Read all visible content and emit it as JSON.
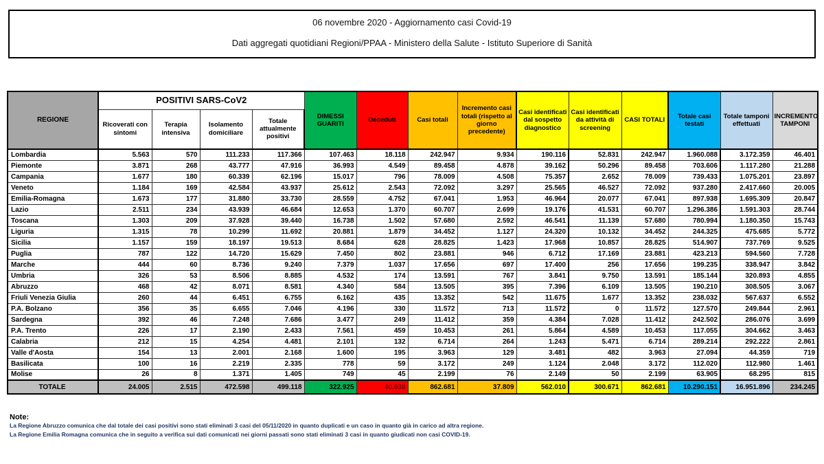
{
  "title": {
    "line1": "06 novembre 2020 - Aggiornamento casi Covid-19",
    "line2": "Dati aggregati quotidiani Regioni/PPAA - Ministero della Salute - Istituto Superiore di Sanità"
  },
  "colors": {
    "green": "#00b050",
    "red": "#ff0000",
    "orange": "#ffc000",
    "yellow": "#ffff00",
    "cyan": "#00b0f0",
    "light_blue": "#bdd7ee",
    "gray_header": "#a6a6a6",
    "gray_total": "#bfbfbf",
    "gray_light": "#d9d9d9",
    "note_text": "#1f3864"
  },
  "table": {
    "group_header": "POSITIVI SARS-CoV2",
    "headers": {
      "regione": "REGIONE",
      "sub": [
        "Ricoverati con sintomi",
        "Terapia intensiva",
        "Isolamento domiciliare",
        "Totale attualmente positivi"
      ],
      "singles": [
        "DIMESSI GUARITI",
        "Deceduti",
        "Casi totali",
        "Incremento casi totali (rispetto al giorno precedente)",
        "Casi identificati dal sospetto diagnostico",
        "Casi identificati da attività di screening",
        "CASI TOTALI",
        "Totale casi testati",
        "Totale tamponi effettuati",
        "INCREMENTO TAMPONI"
      ]
    },
    "column_keys": [
      "ricoverati-con-sintomi",
      "terapia-intensiva",
      "isolamento-domiciliare",
      "totale-attualmente-positivi",
      "dimessi-guariti",
      "deceduti",
      "casi-totali",
      "incremento-casi-totali",
      "casi-sospetto-diagnostico",
      "casi-screening",
      "casi-totali-2",
      "totale-casi-testati",
      "totale-tamponi-effettuati",
      "incremento-tamponi"
    ],
    "rows": [
      {
        "regione": "Lombardia",
        "values": [
          "5.563",
          "570",
          "111.233",
          "117.366",
          "107.463",
          "18.118",
          "242.947",
          "9.934",
          "190.116",
          "52.831",
          "242.947",
          "1.960.088",
          "3.172.359",
          "46.401"
        ]
      },
      {
        "regione": "Piemonte",
        "values": [
          "3.871",
          "268",
          "43.777",
          "47.916",
          "36.993",
          "4.549",
          "89.458",
          "4.878",
          "39.162",
          "50.296",
          "89.458",
          "703.606",
          "1.117.280",
          "21.288"
        ]
      },
      {
        "regione": "Campania",
        "values": [
          "1.677",
          "180",
          "60.339",
          "62.196",
          "15.017",
          "796",
          "78.009",
          "4.508",
          "75.357",
          "2.652",
          "78.009",
          "739.433",
          "1.075.201",
          "23.897"
        ]
      },
      {
        "regione": "Veneto",
        "values": [
          "1.184",
          "169",
          "42.584",
          "43.937",
          "25.612",
          "2.543",
          "72.092",
          "3.297",
          "25.565",
          "46.527",
          "72.092",
          "937.280",
          "2.417.660",
          "20.005"
        ]
      },
      {
        "regione": "Emilia-Romagna",
        "values": [
          "1.673",
          "177",
          "31.880",
          "33.730",
          "28.559",
          "4.752",
          "67.041",
          "1.953",
          "46.964",
          "20.077",
          "67.041",
          "897.938",
          "1.695.309",
          "20.847"
        ]
      },
      {
        "regione": "Lazio",
        "values": [
          "2.511",
          "234",
          "43.939",
          "46.684",
          "12.653",
          "1.370",
          "60.707",
          "2.699",
          "19.176",
          "41.531",
          "60.707",
          "1.296.386",
          "1.591.303",
          "28.744"
        ]
      },
      {
        "regione": "Toscana",
        "values": [
          "1.303",
          "209",
          "37.928",
          "39.440",
          "16.738",
          "1.502",
          "57.680",
          "2.592",
          "46.541",
          "11.139",
          "57.680",
          "780.994",
          "1.180.350",
          "15.743"
        ]
      },
      {
        "regione": "Liguria",
        "values": [
          "1.315",
          "78",
          "10.299",
          "11.692",
          "20.881",
          "1.879",
          "34.452",
          "1.127",
          "24.320",
          "10.132",
          "34.452",
          "244.325",
          "475.685",
          "5.772"
        ]
      },
      {
        "regione": "Sicilia",
        "values": [
          "1.157",
          "159",
          "18.197",
          "19.513",
          "8.684",
          "628",
          "28.825",
          "1.423",
          "17.968",
          "10.857",
          "28.825",
          "514.907",
          "737.769",
          "9.525"
        ]
      },
      {
        "regione": "Puglia",
        "values": [
          "787",
          "122",
          "14.720",
          "15.629",
          "7.450",
          "802",
          "23.881",
          "946",
          "6.712",
          "17.169",
          "23.881",
          "423.213",
          "594.560",
          "7.728"
        ]
      },
      {
        "regione": "Marche",
        "values": [
          "444",
          "60",
          "8.736",
          "9.240",
          "7.379",
          "1.037",
          "17.656",
          "697",
          "17.400",
          "256",
          "17.656",
          "199.235",
          "338.947",
          "3.842"
        ]
      },
      {
        "regione": "Umbria",
        "values": [
          "326",
          "53",
          "8.506",
          "8.885",
          "4.532",
          "174",
          "13.591",
          "767",
          "3.841",
          "9.750",
          "13.591",
          "185.144",
          "320.893",
          "4.855"
        ]
      },
      {
        "regione": "Abruzzo",
        "values": [
          "468",
          "42",
          "8.071",
          "8.581",
          "4.340",
          "584",
          "13.505",
          "395",
          "7.396",
          "6.109",
          "13.505",
          "190.210",
          "308.505",
          "3.067"
        ]
      },
      {
        "regione": "Friuli Venezia Giulia",
        "values": [
          "260",
          "44",
          "6.451",
          "6.755",
          "6.162",
          "435",
          "13.352",
          "542",
          "11.675",
          "1.677",
          "13.352",
          "238.032",
          "567.637",
          "6.552"
        ]
      },
      {
        "regione": "P.A. Bolzano",
        "values": [
          "356",
          "35",
          "6.655",
          "7.046",
          "4.196",
          "330",
          "11.572",
          "713",
          "11.572",
          "0",
          "11.572",
          "127.570",
          "249.844",
          "2.961"
        ]
      },
      {
        "regione": "Sardegna",
        "values": [
          "392",
          "46",
          "7.248",
          "7.686",
          "3.477",
          "249",
          "11.412",
          "359",
          "4.384",
          "7.028",
          "11.412",
          "242.502",
          "286.076",
          "3.699"
        ]
      },
      {
        "regione": "P.A. Trento",
        "values": [
          "226",
          "17",
          "2.190",
          "2.433",
          "7.561",
          "459",
          "10.453",
          "261",
          "5.864",
          "4.589",
          "10.453",
          "117.055",
          "304.662",
          "3.463"
        ]
      },
      {
        "regione": "Calabria",
        "values": [
          "212",
          "15",
          "4.254",
          "4.481",
          "2.101",
          "132",
          "6.714",
          "264",
          "1.243",
          "5.471",
          "6.714",
          "289.214",
          "292.222",
          "2.861"
        ]
      },
      {
        "regione": "Valle d'Aosta",
        "values": [
          "154",
          "13",
          "2.001",
          "2.168",
          "1.600",
          "195",
          "3.963",
          "129",
          "3.481",
          "482",
          "3.963",
          "27.094",
          "44.359",
          "719"
        ]
      },
      {
        "regione": "Basilicata",
        "values": [
          "100",
          "16",
          "2.219",
          "2.335",
          "778",
          "59",
          "3.172",
          "249",
          "1.124",
          "2.048",
          "3.172",
          "112.020",
          "112.980",
          "1.461"
        ]
      },
      {
        "regione": "Molise",
        "values": [
          "26",
          "8",
          "1.371",
          "1.405",
          "749",
          "45",
          "2.199",
          "76",
          "2.149",
          "50",
          "2.199",
          "63.905",
          "68.295",
          "815"
        ]
      }
    ],
    "total": {
      "regione": "TOTALE",
      "values": [
        "24.005",
        "2.515",
        "472.598",
        "499.118",
        "322.925",
        "40.638",
        "862.681",
        "37.809",
        "562.010",
        "300.671",
        "862.681",
        "10.290.151",
        "16.951.896",
        "234.245"
      ]
    }
  },
  "notes": {
    "heading": "Note:",
    "lines": [
      "La Regione Abruzzo comunica che dal totale dei casi positivi sono stati eliminati 3 casi del 05/11/2020 in quanto duplicati e un caso in quanto già in carico ad altra regione.",
      "La Regione Emilia Romagna comunica che in seguito a verifica sui dati comunicati nei giorni passati sono stati eliminati 3 casi in quanto giudicati non casi COVID-19."
    ]
  }
}
